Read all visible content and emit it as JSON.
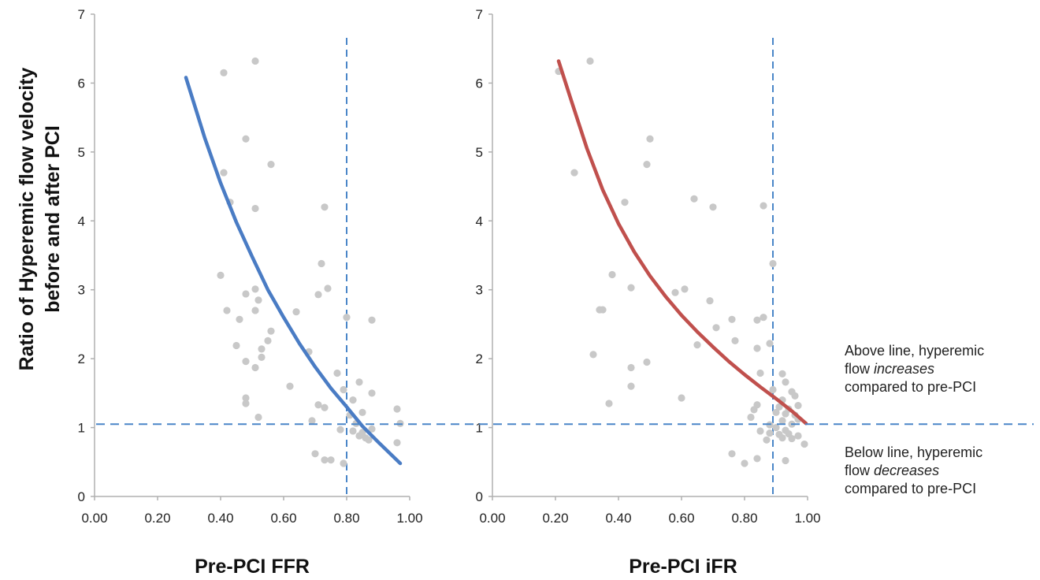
{
  "y_title_line1": "Ratio of Hyperemic flow velocity",
  "y_title_line2": "before and after PCI",
  "annotations": {
    "above": {
      "part1": "Above line, hyperemic",
      "part2": "flow ",
      "emph": "increases",
      "part3": "compared to pre-PCI"
    },
    "below": {
      "part1": "Below line, hyperemic",
      "part2": "flow ",
      "emph": "decreases",
      "part3": "compared to pre-PCI"
    }
  },
  "colors": {
    "ffr_curve": "#4a7cc4",
    "ifr_curve": "#c0504d",
    "points": "#c8c8c8",
    "ref_line": "#4a86c8",
    "axis": "#b0b0b0"
  },
  "chart_data": [
    {
      "type": "scatter",
      "xlabel": "Pre-PCI FFR",
      "ylabel": "Ratio of Hyperemic flow velocity before and after PCI",
      "xlim": [
        0,
        1
      ],
      "ylim": [
        0,
        7
      ],
      "x_ticks": [
        "0.00",
        "0.20",
        "0.40",
        "0.60",
        "0.80",
        "1.00"
      ],
      "y_ticks": [
        "0",
        "1",
        "2",
        "3",
        "4",
        "5",
        "6",
        "7"
      ],
      "reference_lines": {
        "x": 0.8,
        "y": 1.05
      },
      "fit_curve": {
        "x": [
          0.29,
          0.35,
          0.4,
          0.45,
          0.5,
          0.55,
          0.6,
          0.65,
          0.7,
          0.75,
          0.8,
          0.85,
          0.9,
          0.97
        ],
        "y": [
          6.08,
          5.2,
          4.55,
          3.98,
          3.48,
          3.0,
          2.6,
          2.22,
          1.88,
          1.57,
          1.3,
          1.02,
          0.79,
          0.48
        ]
      },
      "points": [
        {
          "x": 0.41,
          "y": 6.15
        },
        {
          "x": 0.51,
          "y": 6.32
        },
        {
          "x": 0.48,
          "y": 5.19
        },
        {
          "x": 0.56,
          "y": 4.82
        },
        {
          "x": 0.41,
          "y": 4.7
        },
        {
          "x": 0.43,
          "y": 4.27
        },
        {
          "x": 0.51,
          "y": 4.18
        },
        {
          "x": 0.73,
          "y": 4.2
        },
        {
          "x": 0.72,
          "y": 3.38
        },
        {
          "x": 0.4,
          "y": 3.21
        },
        {
          "x": 0.74,
          "y": 3.02
        },
        {
          "x": 0.51,
          "y": 3.01
        },
        {
          "x": 0.48,
          "y": 2.94
        },
        {
          "x": 0.71,
          "y": 2.93
        },
        {
          "x": 0.52,
          "y": 2.85
        },
        {
          "x": 0.42,
          "y": 2.7
        },
        {
          "x": 0.51,
          "y": 2.7
        },
        {
          "x": 0.64,
          "y": 2.68
        },
        {
          "x": 0.46,
          "y": 2.57
        },
        {
          "x": 0.8,
          "y": 2.6
        },
        {
          "x": 0.88,
          "y": 2.56
        },
        {
          "x": 0.56,
          "y": 2.4
        },
        {
          "x": 0.55,
          "y": 2.26
        },
        {
          "x": 0.45,
          "y": 2.19
        },
        {
          "x": 0.53,
          "y": 2.14
        },
        {
          "x": 0.68,
          "y": 2.1
        },
        {
          "x": 0.53,
          "y": 2.02
        },
        {
          "x": 0.48,
          "y": 1.96
        },
        {
          "x": 0.51,
          "y": 1.87
        },
        {
          "x": 0.77,
          "y": 1.79
        },
        {
          "x": 0.84,
          "y": 1.66
        },
        {
          "x": 0.62,
          "y": 1.6
        },
        {
          "x": 0.79,
          "y": 1.55
        },
        {
          "x": 0.88,
          "y": 1.5
        },
        {
          "x": 0.48,
          "y": 1.43
        },
        {
          "x": 0.82,
          "y": 1.4
        },
        {
          "x": 0.48,
          "y": 1.35
        },
        {
          "x": 0.71,
          "y": 1.33
        },
        {
          "x": 0.73,
          "y": 1.29
        },
        {
          "x": 0.96,
          "y": 1.27
        },
        {
          "x": 0.85,
          "y": 1.22
        },
        {
          "x": 0.81,
          "y": 1.18
        },
        {
          "x": 0.52,
          "y": 1.15
        },
        {
          "x": 0.69,
          "y": 1.1
        },
        {
          "x": 0.83,
          "y": 1.06
        },
        {
          "x": 0.97,
          "y": 1.06
        },
        {
          "x": 0.78,
          "y": 0.97
        },
        {
          "x": 0.82,
          "y": 0.95
        },
        {
          "x": 0.85,
          "y": 0.93
        },
        {
          "x": 0.88,
          "y": 0.98
        },
        {
          "x": 0.84,
          "y": 0.88
        },
        {
          "x": 0.86,
          "y": 0.85
        },
        {
          "x": 0.87,
          "y": 0.82
        },
        {
          "x": 0.96,
          "y": 0.78
        },
        {
          "x": 0.7,
          "y": 0.62
        },
        {
          "x": 0.73,
          "y": 0.53
        },
        {
          "x": 0.75,
          "y": 0.53
        },
        {
          "x": 0.79,
          "y": 0.48
        }
      ]
    },
    {
      "type": "scatter",
      "xlabel": "Pre-PCI iFR",
      "ylabel": "Ratio of Hyperemic flow velocity before and after PCI",
      "xlim": [
        0,
        1
      ],
      "ylim": [
        0,
        7
      ],
      "x_ticks": [
        "0.00",
        "0.20",
        "0.40",
        "0.60",
        "0.80",
        "1.00"
      ],
      "y_ticks": [
        "0",
        "1",
        "2",
        "3",
        "4",
        "5",
        "6",
        "7"
      ],
      "reference_lines": {
        "x": 0.89,
        "y": 1.05
      },
      "fit_curve": {
        "x": [
          0.21,
          0.25,
          0.3,
          0.35,
          0.4,
          0.45,
          0.5,
          0.55,
          0.6,
          0.65,
          0.7,
          0.75,
          0.8,
          0.85,
          0.9,
          0.95,
          0.995
        ],
        "y": [
          6.32,
          5.75,
          5.05,
          4.45,
          3.96,
          3.55,
          3.2,
          2.9,
          2.63,
          2.39,
          2.17,
          1.96,
          1.77,
          1.59,
          1.42,
          1.24,
          1.06
        ]
      },
      "points": [
        {
          "x": 0.21,
          "y": 6.17
        },
        {
          "x": 0.31,
          "y": 6.32
        },
        {
          "x": 0.5,
          "y": 5.19
        },
        {
          "x": 0.49,
          "y": 4.82
        },
        {
          "x": 0.26,
          "y": 4.7
        },
        {
          "x": 0.42,
          "y": 4.27
        },
        {
          "x": 0.64,
          "y": 4.32
        },
        {
          "x": 0.7,
          "y": 4.2
        },
        {
          "x": 0.86,
          "y": 4.22
        },
        {
          "x": 0.89,
          "y": 3.38
        },
        {
          "x": 0.38,
          "y": 3.22
        },
        {
          "x": 0.44,
          "y": 3.03
        },
        {
          "x": 0.61,
          "y": 3.01
        },
        {
          "x": 0.58,
          "y": 2.96
        },
        {
          "x": 0.69,
          "y": 2.84
        },
        {
          "x": 0.34,
          "y": 2.71
        },
        {
          "x": 0.35,
          "y": 2.71
        },
        {
          "x": 0.76,
          "y": 2.57
        },
        {
          "x": 0.84,
          "y": 2.56
        },
        {
          "x": 0.86,
          "y": 2.6
        },
        {
          "x": 0.71,
          "y": 2.45
        },
        {
          "x": 0.77,
          "y": 2.26
        },
        {
          "x": 0.65,
          "y": 2.2
        },
        {
          "x": 0.88,
          "y": 2.22
        },
        {
          "x": 0.84,
          "y": 2.15
        },
        {
          "x": 0.32,
          "y": 2.06
        },
        {
          "x": 0.49,
          "y": 1.95
        },
        {
          "x": 0.44,
          "y": 1.87
        },
        {
          "x": 0.85,
          "y": 1.79
        },
        {
          "x": 0.92,
          "y": 1.78
        },
        {
          "x": 0.93,
          "y": 1.66
        },
        {
          "x": 0.44,
          "y": 1.6
        },
        {
          "x": 0.89,
          "y": 1.55
        },
        {
          "x": 0.95,
          "y": 1.52
        },
        {
          "x": 0.96,
          "y": 1.46
        },
        {
          "x": 0.6,
          "y": 1.43
        },
        {
          "x": 0.92,
          "y": 1.4
        },
        {
          "x": 0.37,
          "y": 1.35
        },
        {
          "x": 0.84,
          "y": 1.33
        },
        {
          "x": 0.97,
          "y": 1.32
        },
        {
          "x": 0.83,
          "y": 1.26
        },
        {
          "x": 0.91,
          "y": 1.3
        },
        {
          "x": 0.94,
          "y": 1.27
        },
        {
          "x": 0.9,
          "y": 1.22
        },
        {
          "x": 0.93,
          "y": 1.2
        },
        {
          "x": 0.96,
          "y": 1.18
        },
        {
          "x": 0.82,
          "y": 1.15
        },
        {
          "x": 0.92,
          "y": 1.1
        },
        {
          "x": 0.97,
          "y": 1.12
        },
        {
          "x": 0.95,
          "y": 1.05
        },
        {
          "x": 0.88,
          "y": 1.04
        },
        {
          "x": 0.9,
          "y": 1.0
        },
        {
          "x": 0.93,
          "y": 0.96
        },
        {
          "x": 0.85,
          "y": 0.95
        },
        {
          "x": 0.88,
          "y": 0.92
        },
        {
          "x": 0.91,
          "y": 0.9
        },
        {
          "x": 0.94,
          "y": 0.91
        },
        {
          "x": 0.97,
          "y": 0.88
        },
        {
          "x": 0.92,
          "y": 0.85
        },
        {
          "x": 0.95,
          "y": 0.84
        },
        {
          "x": 0.87,
          "y": 0.82
        },
        {
          "x": 0.99,
          "y": 0.76
        },
        {
          "x": 0.76,
          "y": 0.62
        },
        {
          "x": 0.84,
          "y": 0.55
        },
        {
          "x": 0.93,
          "y": 0.52
        },
        {
          "x": 0.8,
          "y": 0.48
        }
      ]
    }
  ]
}
